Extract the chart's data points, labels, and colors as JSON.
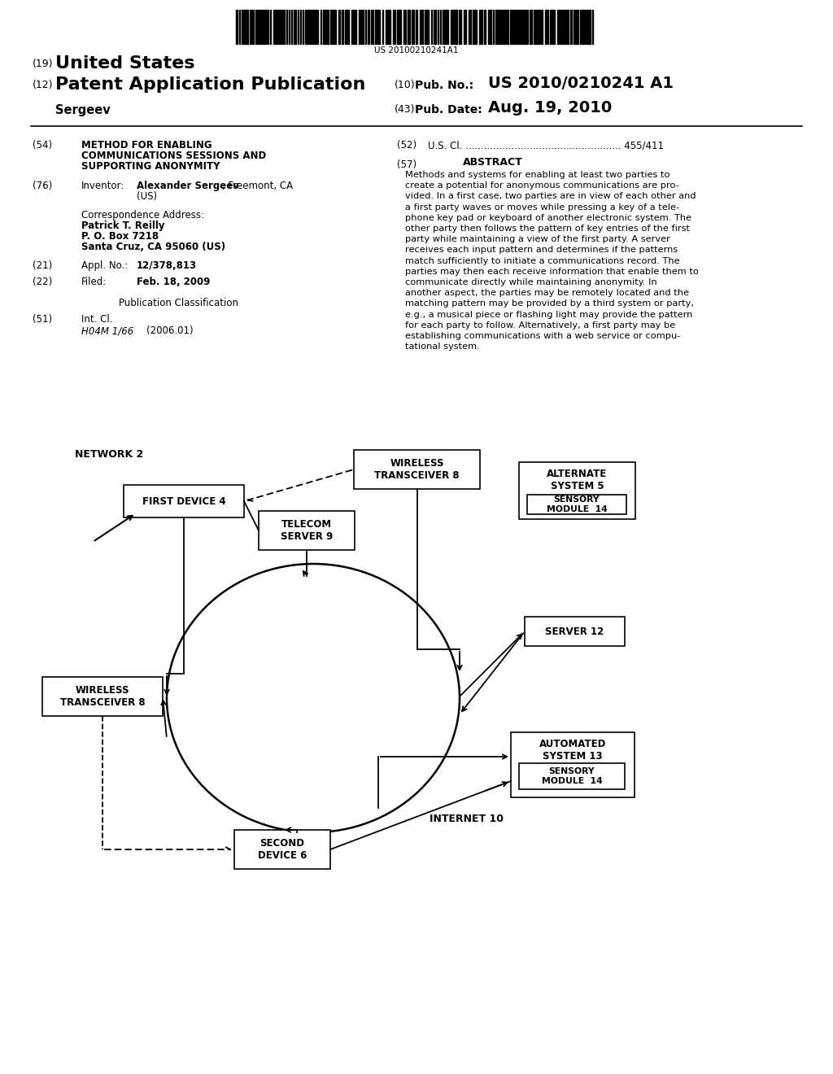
{
  "bg_color": "#ffffff",
  "barcode_text": "US 20100210241A1",
  "diagram": {
    "network2_label": "NETWORK 2",
    "first_device_label": "FIRST DEVICE 4",
    "wireless_t8_top_label": "WIRELESS\nTRANSCEIVER 8",
    "telecom_label": "TELECOM\nSERVER 9",
    "alternate_label": "ALTERNATE\nSYSTEM 5",
    "sensory_top_label": "SENSORY\nMODULE  14",
    "server12_label": "SERVER 12",
    "wireless_t8_bot_label": "WIRELESS\nTRANSCEIVER 8",
    "second_device_label": "SECOND\nDEVICE 6",
    "automated_label": "AUTOMATED\nSYSTEM 13",
    "sensory_bot_label": "SENSORY\nMODULE  14",
    "internet_label": "INTERNET 10"
  }
}
